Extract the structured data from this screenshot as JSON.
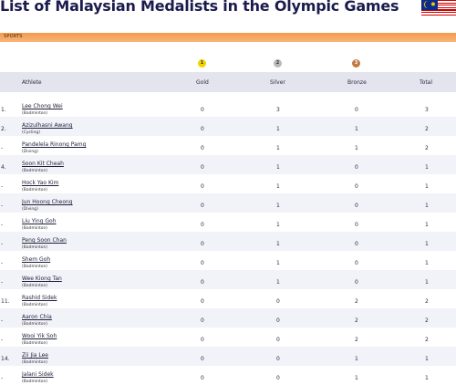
{
  "page": {
    "title": "List of Malaysian Medalists in the Olympic Games",
    "category_label": "SPORTS"
  },
  "medals": {
    "gold": "1",
    "silver": "2",
    "bronze": "3"
  },
  "columns": {
    "athlete": "Athlete",
    "gold": "Gold",
    "silver": "Silver",
    "bronze": "Bronze",
    "total": "Total"
  },
  "colors": {
    "band": "#f39a4d",
    "header_bg": "#e4e4ef",
    "alt_row": "#f2f2f9",
    "gold": "#f2d300",
    "silver": "#b9b9b9",
    "bronze": "#c07a45"
  },
  "rows": [
    {
      "rank": "1.",
      "name": "Lee Chong Wei",
      "sport": "(Badminton)",
      "gold": "0",
      "silver": "3",
      "bronze": "0",
      "total": "3"
    },
    {
      "rank": "2.",
      "name": "Azizulhasni Awang",
      "sport": "(Cycling)",
      "gold": "0",
      "silver": "1",
      "bronze": "1",
      "total": "2"
    },
    {
      "rank": "-",
      "name": "Pandelela Rinong Pamg",
      "sport": "(Diving)",
      "gold": "0",
      "silver": "1",
      "bronze": "1",
      "total": "2"
    },
    {
      "rank": "4.",
      "name": "Soon Kit Cheah",
      "sport": "(Badminton)",
      "gold": "0",
      "silver": "1",
      "bronze": "0",
      "total": "1"
    },
    {
      "rank": "-",
      "name": "Hock Yao Kim",
      "sport": "(Badminton)",
      "gold": "0",
      "silver": "1",
      "bronze": "0",
      "total": "1"
    },
    {
      "rank": "-",
      "name": "Jun Hoong Cheong",
      "sport": "(Diving)",
      "gold": "0",
      "silver": "1",
      "bronze": "0",
      "total": "1"
    },
    {
      "rank": "-",
      "name": "Liu Ying Goh",
      "sport": "(Badminton)",
      "gold": "0",
      "silver": "1",
      "bronze": "0",
      "total": "1"
    },
    {
      "rank": "-",
      "name": "Peng Soon Chan",
      "sport": "(Badminton)",
      "gold": "0",
      "silver": "1",
      "bronze": "0",
      "total": "1"
    },
    {
      "rank": "-",
      "name": "Shem Goh",
      "sport": "(Badminton)",
      "gold": "0",
      "silver": "1",
      "bronze": "0",
      "total": "1"
    },
    {
      "rank": "-",
      "name": "Wee Kiong Tan",
      "sport": "(Badminton)",
      "gold": "0",
      "silver": "1",
      "bronze": "0",
      "total": "1"
    },
    {
      "rank": "11.",
      "name": "Rashid Sidek",
      "sport": "(Badminton)",
      "gold": "0",
      "silver": "0",
      "bronze": "2",
      "total": "2"
    },
    {
      "rank": "-",
      "name": "Aaron Chia",
      "sport": "(Badminton)",
      "gold": "0",
      "silver": "0",
      "bronze": "2",
      "total": "2"
    },
    {
      "rank": "-",
      "name": "Wooi Yik Soh",
      "sport": "(Badminton)",
      "gold": "0",
      "silver": "0",
      "bronze": "2",
      "total": "2"
    },
    {
      "rank": "14.",
      "name": "Zii Jia Lee",
      "sport": "(Badminton)",
      "gold": "0",
      "silver": "0",
      "bronze": "1",
      "total": "1"
    },
    {
      "rank": "-",
      "name": "Jalani Sidek",
      "sport": "(Badminton)",
      "gold": "0",
      "silver": "0",
      "bronze": "1",
      "total": "1"
    }
  ]
}
